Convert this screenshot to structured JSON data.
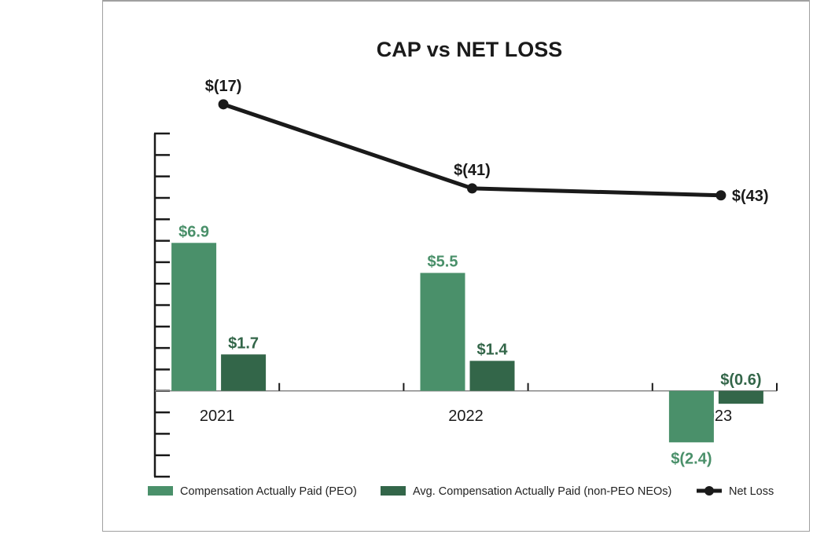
{
  "chart_data": {
    "type": "bar",
    "title": "CAP vs NET LOSS",
    "xlabel": "",
    "ylabel": "",
    "categories": [
      "2021",
      "2022",
      "2023"
    ],
    "ylim": [
      -4,
      12
    ],
    "y_tick_step": 1,
    "y_tick_labels_shown": false,
    "grid": false,
    "secondary_axis": {
      "series": "Net Loss",
      "ylim": [
        -100,
        0
      ],
      "visible": false
    },
    "series": [
      {
        "name": "Compensation Actually Paid (PEO)",
        "type": "bar",
        "color": "#4a906a",
        "values": [
          6.9,
          5.5,
          -2.4
        ],
        "labels": [
          "$6.9",
          "$5.5",
          "$(2.4)"
        ]
      },
      {
        "name": "Avg. Compensation Actually Paid (non-PEO NEOs)",
        "type": "bar",
        "color": "#336649",
        "values": [
          1.7,
          1.4,
          -0.6
        ],
        "labels": [
          "$1.7",
          "$1.4",
          "$(0.6)"
        ]
      },
      {
        "name": "Net Loss",
        "type": "line",
        "color": "#1a1a1a",
        "axis": "secondary",
        "values": [
          -17,
          -41,
          -43
        ],
        "labels": [
          "$(17)",
          "$(41)",
          "$(43)"
        ]
      }
    ],
    "legend": {
      "placement": "bottom",
      "entries": [
        "Compensation Actually Paid (PEO)",
        "Avg. Compensation Actually Paid (non-PEO NEOs)",
        "Net Loss"
      ]
    }
  }
}
